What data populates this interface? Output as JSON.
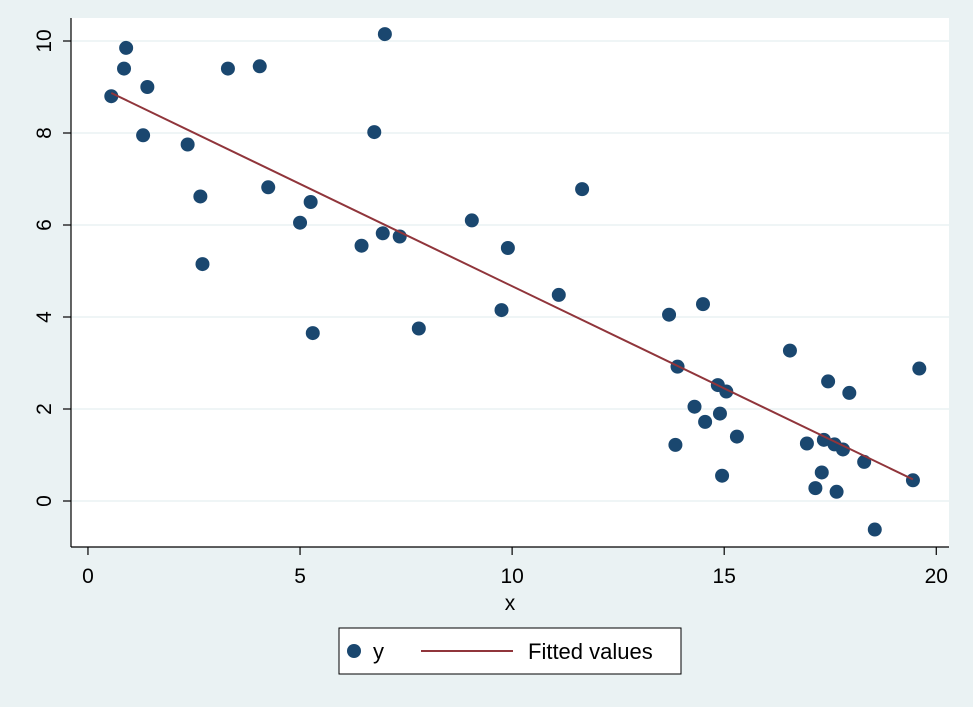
{
  "chart_data": {
    "type": "scatter",
    "xlabel": "x",
    "ylabel": "",
    "xlim": [
      -0.4,
      20.3
    ],
    "ylim": [
      -1,
      10.5
    ],
    "xticks": [
      0,
      5,
      10,
      15,
      20
    ],
    "yticks": [
      0,
      2,
      4,
      6,
      8,
      10
    ],
    "grid": "horizontal",
    "legend_position": "bottom",
    "colors": {
      "marker": "#1a476f",
      "fit": "#90353b",
      "plot_bg": "#ffffff",
      "page_bg": "#eaf2f3",
      "grid": "#eaf2f3"
    },
    "series": [
      {
        "name": "y",
        "kind": "scatter",
        "points": [
          [
            0.55,
            8.8
          ],
          [
            0.85,
            9.4
          ],
          [
            0.9,
            9.85
          ],
          [
            1.3,
            7.95
          ],
          [
            1.4,
            9.0
          ],
          [
            2.35,
            7.75
          ],
          [
            2.65,
            6.62
          ],
          [
            2.7,
            5.15
          ],
          [
            3.3,
            9.4
          ],
          [
            4.05,
            9.45
          ],
          [
            4.25,
            6.82
          ],
          [
            5.0,
            6.05
          ],
          [
            5.25,
            6.5
          ],
          [
            5.3,
            3.65
          ],
          [
            6.45,
            5.55
          ],
          [
            6.75,
            8.02
          ],
          [
            6.95,
            5.82
          ],
          [
            7.0,
            10.15
          ],
          [
            7.35,
            5.75
          ],
          [
            7.8,
            3.75
          ],
          [
            9.05,
            6.1
          ],
          [
            9.75,
            4.15
          ],
          [
            9.9,
            5.5
          ],
          [
            11.1,
            4.48
          ],
          [
            11.65,
            6.78
          ],
          [
            13.7,
            4.05
          ],
          [
            13.85,
            1.22
          ],
          [
            13.9,
            2.92
          ],
          [
            14.3,
            2.05
          ],
          [
            14.5,
            4.28
          ],
          [
            14.55,
            1.72
          ],
          [
            14.85,
            2.52
          ],
          [
            14.9,
            1.9
          ],
          [
            14.95,
            0.55
          ],
          [
            15.05,
            2.38
          ],
          [
            15.3,
            1.4
          ],
          [
            16.55,
            3.27
          ],
          [
            16.95,
            1.25
          ],
          [
            17.15,
            0.28
          ],
          [
            17.3,
            0.62
          ],
          [
            17.35,
            1.33
          ],
          [
            17.45,
            2.6
          ],
          [
            17.6,
            1.23
          ],
          [
            17.65,
            0.2
          ],
          [
            17.8,
            1.12
          ],
          [
            17.95,
            2.35
          ],
          [
            18.3,
            0.85
          ],
          [
            18.55,
            -0.62
          ],
          [
            19.45,
            0.45
          ],
          [
            19.6,
            2.88
          ]
        ]
      },
      {
        "name": "Fitted values",
        "kind": "line",
        "points": [
          [
            0.55,
            8.87
          ],
          [
            19.45,
            0.47
          ]
        ]
      }
    ]
  }
}
